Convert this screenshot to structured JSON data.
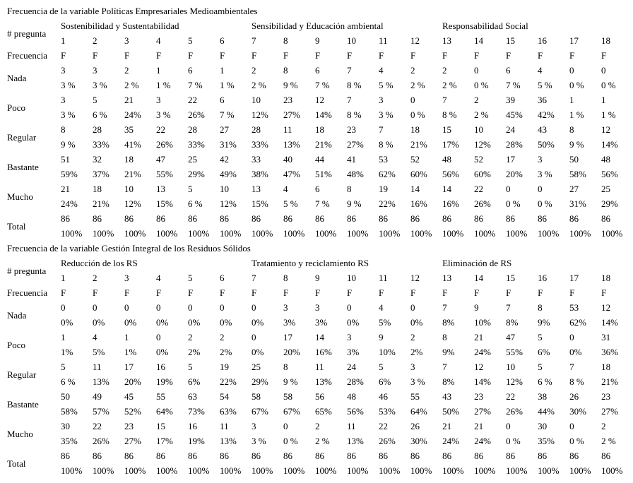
{
  "page": {
    "background_color": "#ffffff",
    "text_color": "#000000"
  },
  "tables": [
    {
      "title": "Frecuencia de la variable Políticas Empresariales Medioambientales",
      "corner_label": "# pregunta",
      "frequency_label": "Frecuencia",
      "groups": [
        {
          "label": "Sostenibilidad y Sustentabilidad",
          "span": 6
        },
        {
          "label": "Sensibilidad y Educación ambiental",
          "span": 6
        },
        {
          "label": "Responsabilidad Social",
          "span": 6
        }
      ],
      "question_numbers": [
        "1",
        "2",
        "3",
        "4",
        "5",
        "6",
        "7",
        "8",
        "9",
        "10",
        "11",
        "12",
        "13",
        "14",
        "15",
        "16",
        "17",
        "18"
      ],
      "frequency_values": [
        "F",
        "F",
        "F",
        "F",
        "F",
        "F",
        "F",
        "F",
        "F",
        "F",
        "F",
        "F",
        "F",
        "F",
        "F",
        "F",
        "F",
        "F"
      ],
      "rows": [
        {
          "label": "Nada",
          "counts": [
            "3",
            "3",
            "2",
            "1",
            "6",
            "1",
            "2",
            "8",
            "6",
            "7",
            "4",
            "2",
            "2",
            "0",
            "6",
            "4",
            "0",
            "0"
          ],
          "percents": [
            "3 %",
            "3 %",
            "2 %",
            "1 %",
            "7 %",
            "1 %",
            "2 %",
            "9 %",
            "7 %",
            "8 %",
            "5 %",
            "2 %",
            "2 %",
            "0 %",
            "7 %",
            "5 %",
            "0 %",
            "0 %"
          ]
        },
        {
          "label": "Poco",
          "counts": [
            "3",
            "5",
            "21",
            "3",
            "22",
            "6",
            "10",
            "23",
            "12",
            "7",
            "3",
            "0",
            "7",
            "2",
            "39",
            "36",
            "1",
            "1"
          ],
          "percents": [
            "3 %",
            "6 %",
            "24%",
            "3 %",
            "26%",
            "7 %",
            "12%",
            "27%",
            "14%",
            "8 %",
            "3 %",
            "0 %",
            "8 %",
            "2 %",
            "45%",
            "42%",
            "1 %",
            "1 %"
          ]
        },
        {
          "label": "Regular",
          "counts": [
            "8",
            "28",
            "35",
            "22",
            "28",
            "27",
            "28",
            "11",
            "18",
            "23",
            "7",
            "18",
            "15",
            "10",
            "24",
            "43",
            "8",
            "12"
          ],
          "percents": [
            "9 %",
            "33%",
            "41%",
            "26%",
            "33%",
            "31%",
            "33%",
            "13%",
            "21%",
            "27%",
            "8 %",
            "21%",
            "17%",
            "12%",
            "28%",
            "50%",
            "9 %",
            "14%"
          ]
        },
        {
          "label": "Bastante",
          "counts": [
            "51",
            "32",
            "18",
            "47",
            "25",
            "42",
            "33",
            "40",
            "44",
            "41",
            "53",
            "52",
            "48",
            "52",
            "17",
            "3",
            "50",
            "48"
          ],
          "percents": [
            "59%",
            "37%",
            "21%",
            "55%",
            "29%",
            "49%",
            "38%",
            "47%",
            "51%",
            "48%",
            "62%",
            "60%",
            "56%",
            "60%",
            "20%",
            "3 %",
            "58%",
            "56%"
          ]
        },
        {
          "label": "Mucho",
          "counts": [
            "21",
            "18",
            "10",
            "13",
            "5",
            "10",
            "13",
            "4",
            "6",
            "8",
            "19",
            "14",
            "14",
            "22",
            "0",
            "0",
            "27",
            "25"
          ],
          "percents": [
            "24%",
            "21%",
            "12%",
            "15%",
            "6 %",
            "12%",
            "15%",
            "5 %",
            "7 %",
            "9 %",
            "22%",
            "16%",
            "16%",
            "26%",
            "0 %",
            "0 %",
            "31%",
            "29%"
          ]
        },
        {
          "label": "Total",
          "counts": [
            "86",
            "86",
            "86",
            "86",
            "86",
            "86",
            "86",
            "86",
            "86",
            "86",
            "86",
            "86",
            "86",
            "86",
            "86",
            "86",
            "86",
            "86"
          ],
          "percents": [
            "100%",
            "100%",
            "100%",
            "100%",
            "100%",
            "100%",
            "100%",
            "100%",
            "100%",
            "100%",
            "100%",
            "100%",
            "100%",
            "100%",
            "100%",
            "100%",
            "100%",
            "100%"
          ]
        }
      ]
    },
    {
      "title": "Frecuencia de la variable Gestión Integral de los Residuos Sólidos",
      "corner_label": "# pregunta",
      "frequency_label": "Frecuencia",
      "groups": [
        {
          "label": "Reducción de los RS",
          "span": 6
        },
        {
          "label": "Tratamiento y reciclamiento RS",
          "span": 6
        },
        {
          "label": "Eliminación de RS",
          "span": 6
        }
      ],
      "question_numbers": [
        "1",
        "2",
        "3",
        "4",
        "5",
        "6",
        "7",
        "8",
        "9",
        "10",
        "11",
        "12",
        "13",
        "14",
        "15",
        "16",
        "17",
        "18"
      ],
      "frequency_values": [
        "F",
        "F",
        "F",
        "F",
        "F",
        "F",
        "F",
        "F",
        "F",
        "F",
        "F",
        "F",
        "F",
        "F",
        "F",
        "F",
        "F",
        "F"
      ],
      "rows": [
        {
          "label": "Nada",
          "counts": [
            "0",
            "0",
            "0",
            "0",
            "0",
            "0",
            "0",
            "3",
            "3",
            "0",
            "4",
            "0",
            "7",
            "9",
            "7",
            "8",
            "53",
            "12"
          ],
          "percents": [
            "0%",
            "0%",
            "0%",
            "0%",
            "0%",
            "0%",
            "0%",
            "3%",
            "3%",
            "0%",
            "5%",
            "0%",
            "8%",
            "10%",
            "8%",
            "9%",
            "62%",
            "14%"
          ]
        },
        {
          "label": "Poco",
          "counts": [
            "1",
            "4",
            "1",
            "0",
            "2",
            "2",
            "0",
            "17",
            "14",
            "3",
            "9",
            "2",
            "8",
            "21",
            "47",
            "5",
            "0",
            "31"
          ],
          "percents": [
            "1%",
            "5%",
            "1%",
            "0%",
            "2%",
            "2%",
            "0%",
            "20%",
            "16%",
            "3%",
            "10%",
            "2%",
            "9%",
            "24%",
            "55%",
            "6%",
            "0%",
            "36%"
          ]
        },
        {
          "label": "Regular",
          "counts": [
            "5",
            "11",
            "17",
            "16",
            "5",
            "19",
            "25",
            "8",
            "11",
            "24",
            "5",
            "3",
            "7",
            "12",
            "10",
            "5",
            "7",
            "18"
          ],
          "percents": [
            "6 %",
            "13%",
            "20%",
            "19%",
            "6%",
            "22%",
            "29%",
            "9 %",
            "13%",
            "28%",
            "6%",
            "3 %",
            "8%",
            "14%",
            "12%",
            "6 %",
            "8 %",
            "21%"
          ]
        },
        {
          "label": "Bastante",
          "counts": [
            "50",
            "49",
            "45",
            "55",
            "63",
            "54",
            "58",
            "58",
            "56",
            "48",
            "46",
            "55",
            "43",
            "23",
            "22",
            "38",
            "26",
            "23"
          ],
          "percents": [
            "58%",
            "57%",
            "52%",
            "64%",
            "73%",
            "63%",
            "67%",
            "67%",
            "65%",
            "56%",
            "53%",
            "64%",
            "50%",
            "27%",
            "26%",
            "44%",
            "30%",
            "27%"
          ]
        },
        {
          "label": "Mucho",
          "counts": [
            "30",
            "22",
            "23",
            "15",
            "16",
            "11",
            "3",
            "0",
            "2",
            "11",
            "22",
            "26",
            "21",
            "21",
            "0",
            "30",
            "0",
            "2"
          ],
          "percents": [
            "35%",
            "26%",
            "27%",
            "17%",
            "19%",
            "13%",
            "3 %",
            "0 %",
            "2 %",
            "13%",
            "26%",
            "30%",
            "24%",
            "24%",
            "0 %",
            "35%",
            "0 %",
            "2 %"
          ]
        },
        {
          "label": "Total",
          "counts": [
            "86",
            "86",
            "86",
            "86",
            "86",
            "86",
            "86",
            "86",
            "86",
            "86",
            "86",
            "86",
            "86",
            "86",
            "86",
            "86",
            "86",
            "86"
          ],
          "percents": [
            "100%",
            "100%",
            "100%",
            "100%",
            "100%",
            "100%",
            "100%",
            "100%",
            "100%",
            "100%",
            "100%",
            "100%",
            "100%",
            "100%",
            "100%",
            "100%",
            "100%",
            "100%"
          ]
        }
      ]
    }
  ]
}
